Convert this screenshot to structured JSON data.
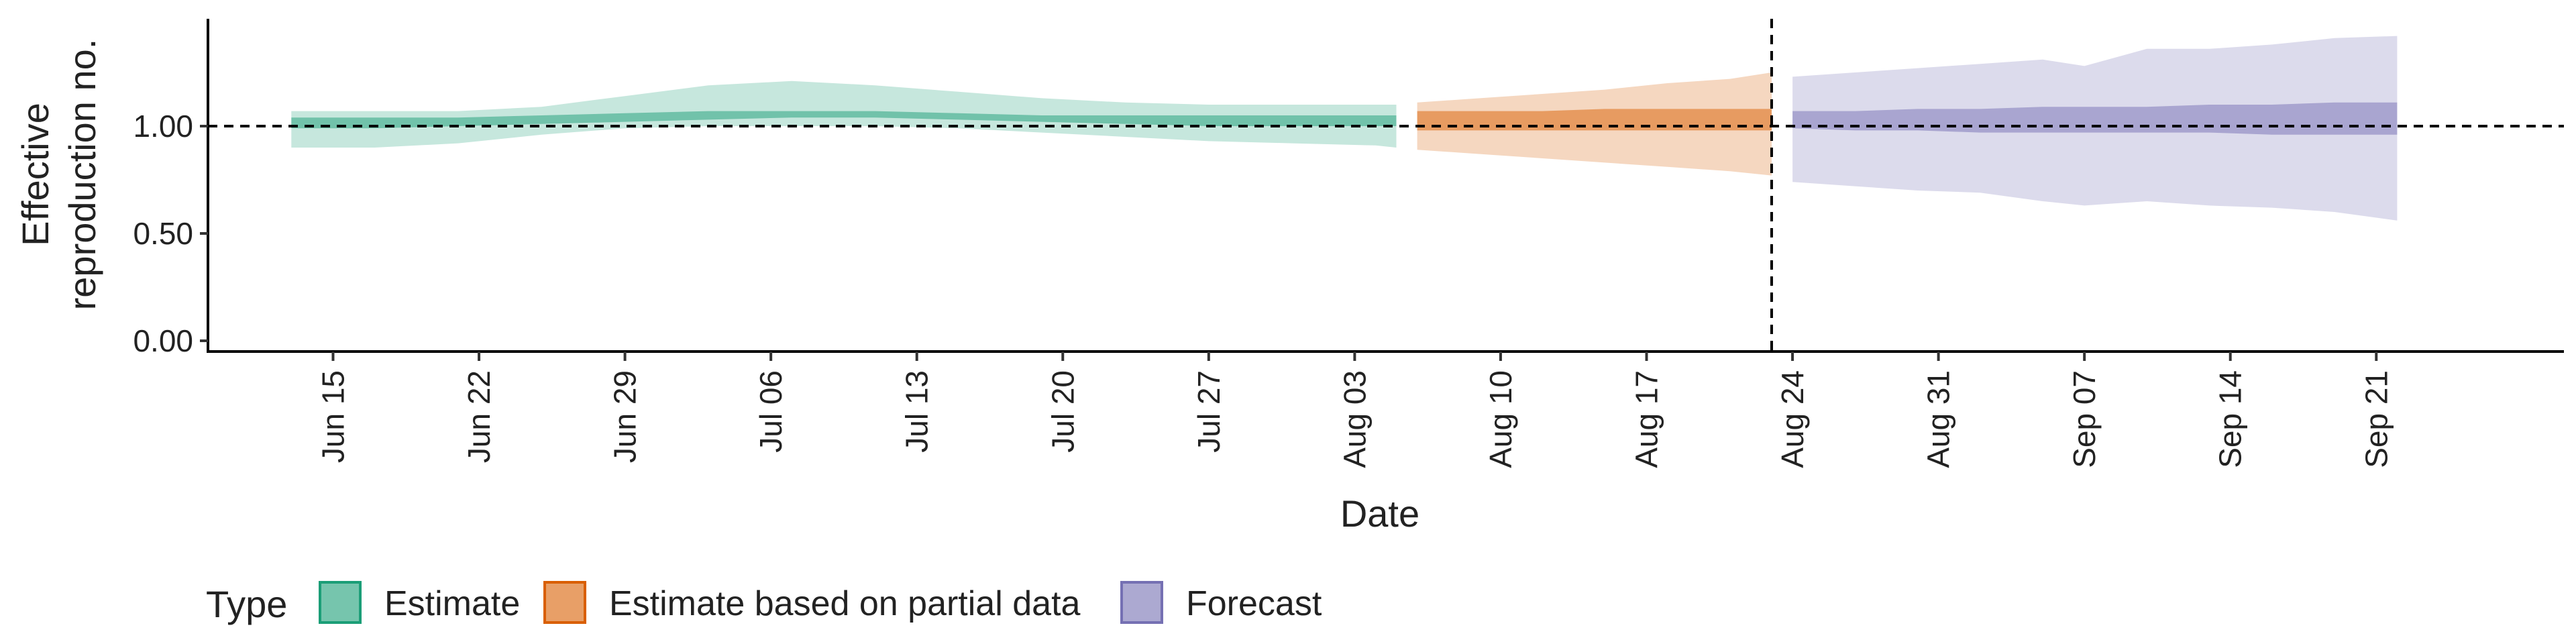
{
  "chart_data": {
    "type": "area",
    "xlabel": "Date",
    "ylabel_line1": "Effective",
    "ylabel_line2": "reproduction no.",
    "x_tick_labels": [
      "Jun 15",
      "Jun 22",
      "Jun 29",
      "Jul 06",
      "Jul 13",
      "Jul 20",
      "Jul 27",
      "Aug 03",
      "Aug 10",
      "Aug 17",
      "Aug 24",
      "Aug 31",
      "Sep 07",
      "Sep 14",
      "Sep 21"
    ],
    "x_tick_dates": [
      "2020-06-15",
      "2020-06-22",
      "2020-06-29",
      "2020-07-06",
      "2020-07-13",
      "2020-07-20",
      "2020-07-27",
      "2020-08-03",
      "2020-08-10",
      "2020-08-17",
      "2020-08-24",
      "2020-08-31",
      "2020-09-07",
      "2020-09-14",
      "2020-09-21"
    ],
    "xlim": [
      "2020-06-09",
      "2020-09-30"
    ],
    "y_ticks": [
      0.0,
      0.5,
      1.0
    ],
    "y_tick_labels": [
      "0.00",
      "0.50",
      "1.00"
    ],
    "ylim": [
      -0.05,
      1.5
    ],
    "reference_hline": 1.0,
    "reference_vline": "2020-08-23",
    "legend": {
      "title": "Type",
      "position": "bottom"
    },
    "series": [
      {
        "name": "Estimate",
        "color": "#1b9e77",
        "dates": [
          "2020-06-13",
          "2020-06-17",
          "2020-06-21",
          "2020-06-25",
          "2020-06-29",
          "2020-07-03",
          "2020-07-07",
          "2020-07-11",
          "2020-07-15",
          "2020-07-19",
          "2020-07-23",
          "2020-07-27",
          "2020-07-31",
          "2020-08-04",
          "2020-08-05"
        ],
        "lower90": [
          0.9,
          0.9,
          0.92,
          0.96,
          0.99,
          1.0,
          1.0,
          1.0,
          0.99,
          0.97,
          0.95,
          0.93,
          0.92,
          0.91,
          0.9
        ],
        "upper90": [
          1.07,
          1.07,
          1.07,
          1.09,
          1.14,
          1.19,
          1.21,
          1.19,
          1.16,
          1.13,
          1.11,
          1.1,
          1.1,
          1.1,
          1.1
        ],
        "lower50": [
          0.99,
          0.99,
          1.0,
          1.01,
          1.02,
          1.03,
          1.04,
          1.04,
          1.03,
          1.02,
          1.01,
          1.0,
          1.0,
          1.0,
          1.0
        ],
        "upper50": [
          1.04,
          1.04,
          1.04,
          1.05,
          1.06,
          1.07,
          1.07,
          1.07,
          1.06,
          1.05,
          1.05,
          1.05,
          1.05,
          1.05,
          1.05
        ]
      },
      {
        "name": "Estimate based on partial data",
        "color": "#d95f02",
        "dates": [
          "2020-08-06",
          "2020-08-09",
          "2020-08-12",
          "2020-08-15",
          "2020-08-18",
          "2020-08-21",
          "2020-08-23"
        ],
        "lower90": [
          0.89,
          0.87,
          0.85,
          0.83,
          0.81,
          0.79,
          0.77
        ],
        "upper90": [
          1.11,
          1.13,
          1.15,
          1.17,
          1.2,
          1.22,
          1.25
        ],
        "lower50": [
          0.98,
          0.98,
          0.98,
          0.98,
          0.98,
          0.98,
          0.98
        ],
        "upper50": [
          1.07,
          1.07,
          1.07,
          1.08,
          1.08,
          1.08,
          1.08
        ]
      },
      {
        "name": "Forecast",
        "color": "#7570b3",
        "dates": [
          "2020-08-24",
          "2020-08-27",
          "2020-08-30",
          "2020-09-02",
          "2020-09-05",
          "2020-09-07",
          "2020-09-10",
          "2020-09-13",
          "2020-09-16",
          "2020-09-19",
          "2020-09-22"
        ],
        "lower90": [
          0.74,
          0.72,
          0.7,
          0.69,
          0.65,
          0.63,
          0.65,
          0.63,
          0.62,
          0.6,
          0.56
        ],
        "upper90": [
          1.23,
          1.25,
          1.27,
          1.29,
          1.31,
          1.28,
          1.36,
          1.36,
          1.38,
          1.41,
          1.42
        ],
        "lower50": [
          0.99,
          0.98,
          0.98,
          0.97,
          0.97,
          0.97,
          0.97,
          0.97,
          0.96,
          0.96,
          0.96
        ],
        "upper50": [
          1.07,
          1.07,
          1.08,
          1.08,
          1.09,
          1.09,
          1.09,
          1.1,
          1.1,
          1.11,
          1.11
        ]
      }
    ]
  }
}
